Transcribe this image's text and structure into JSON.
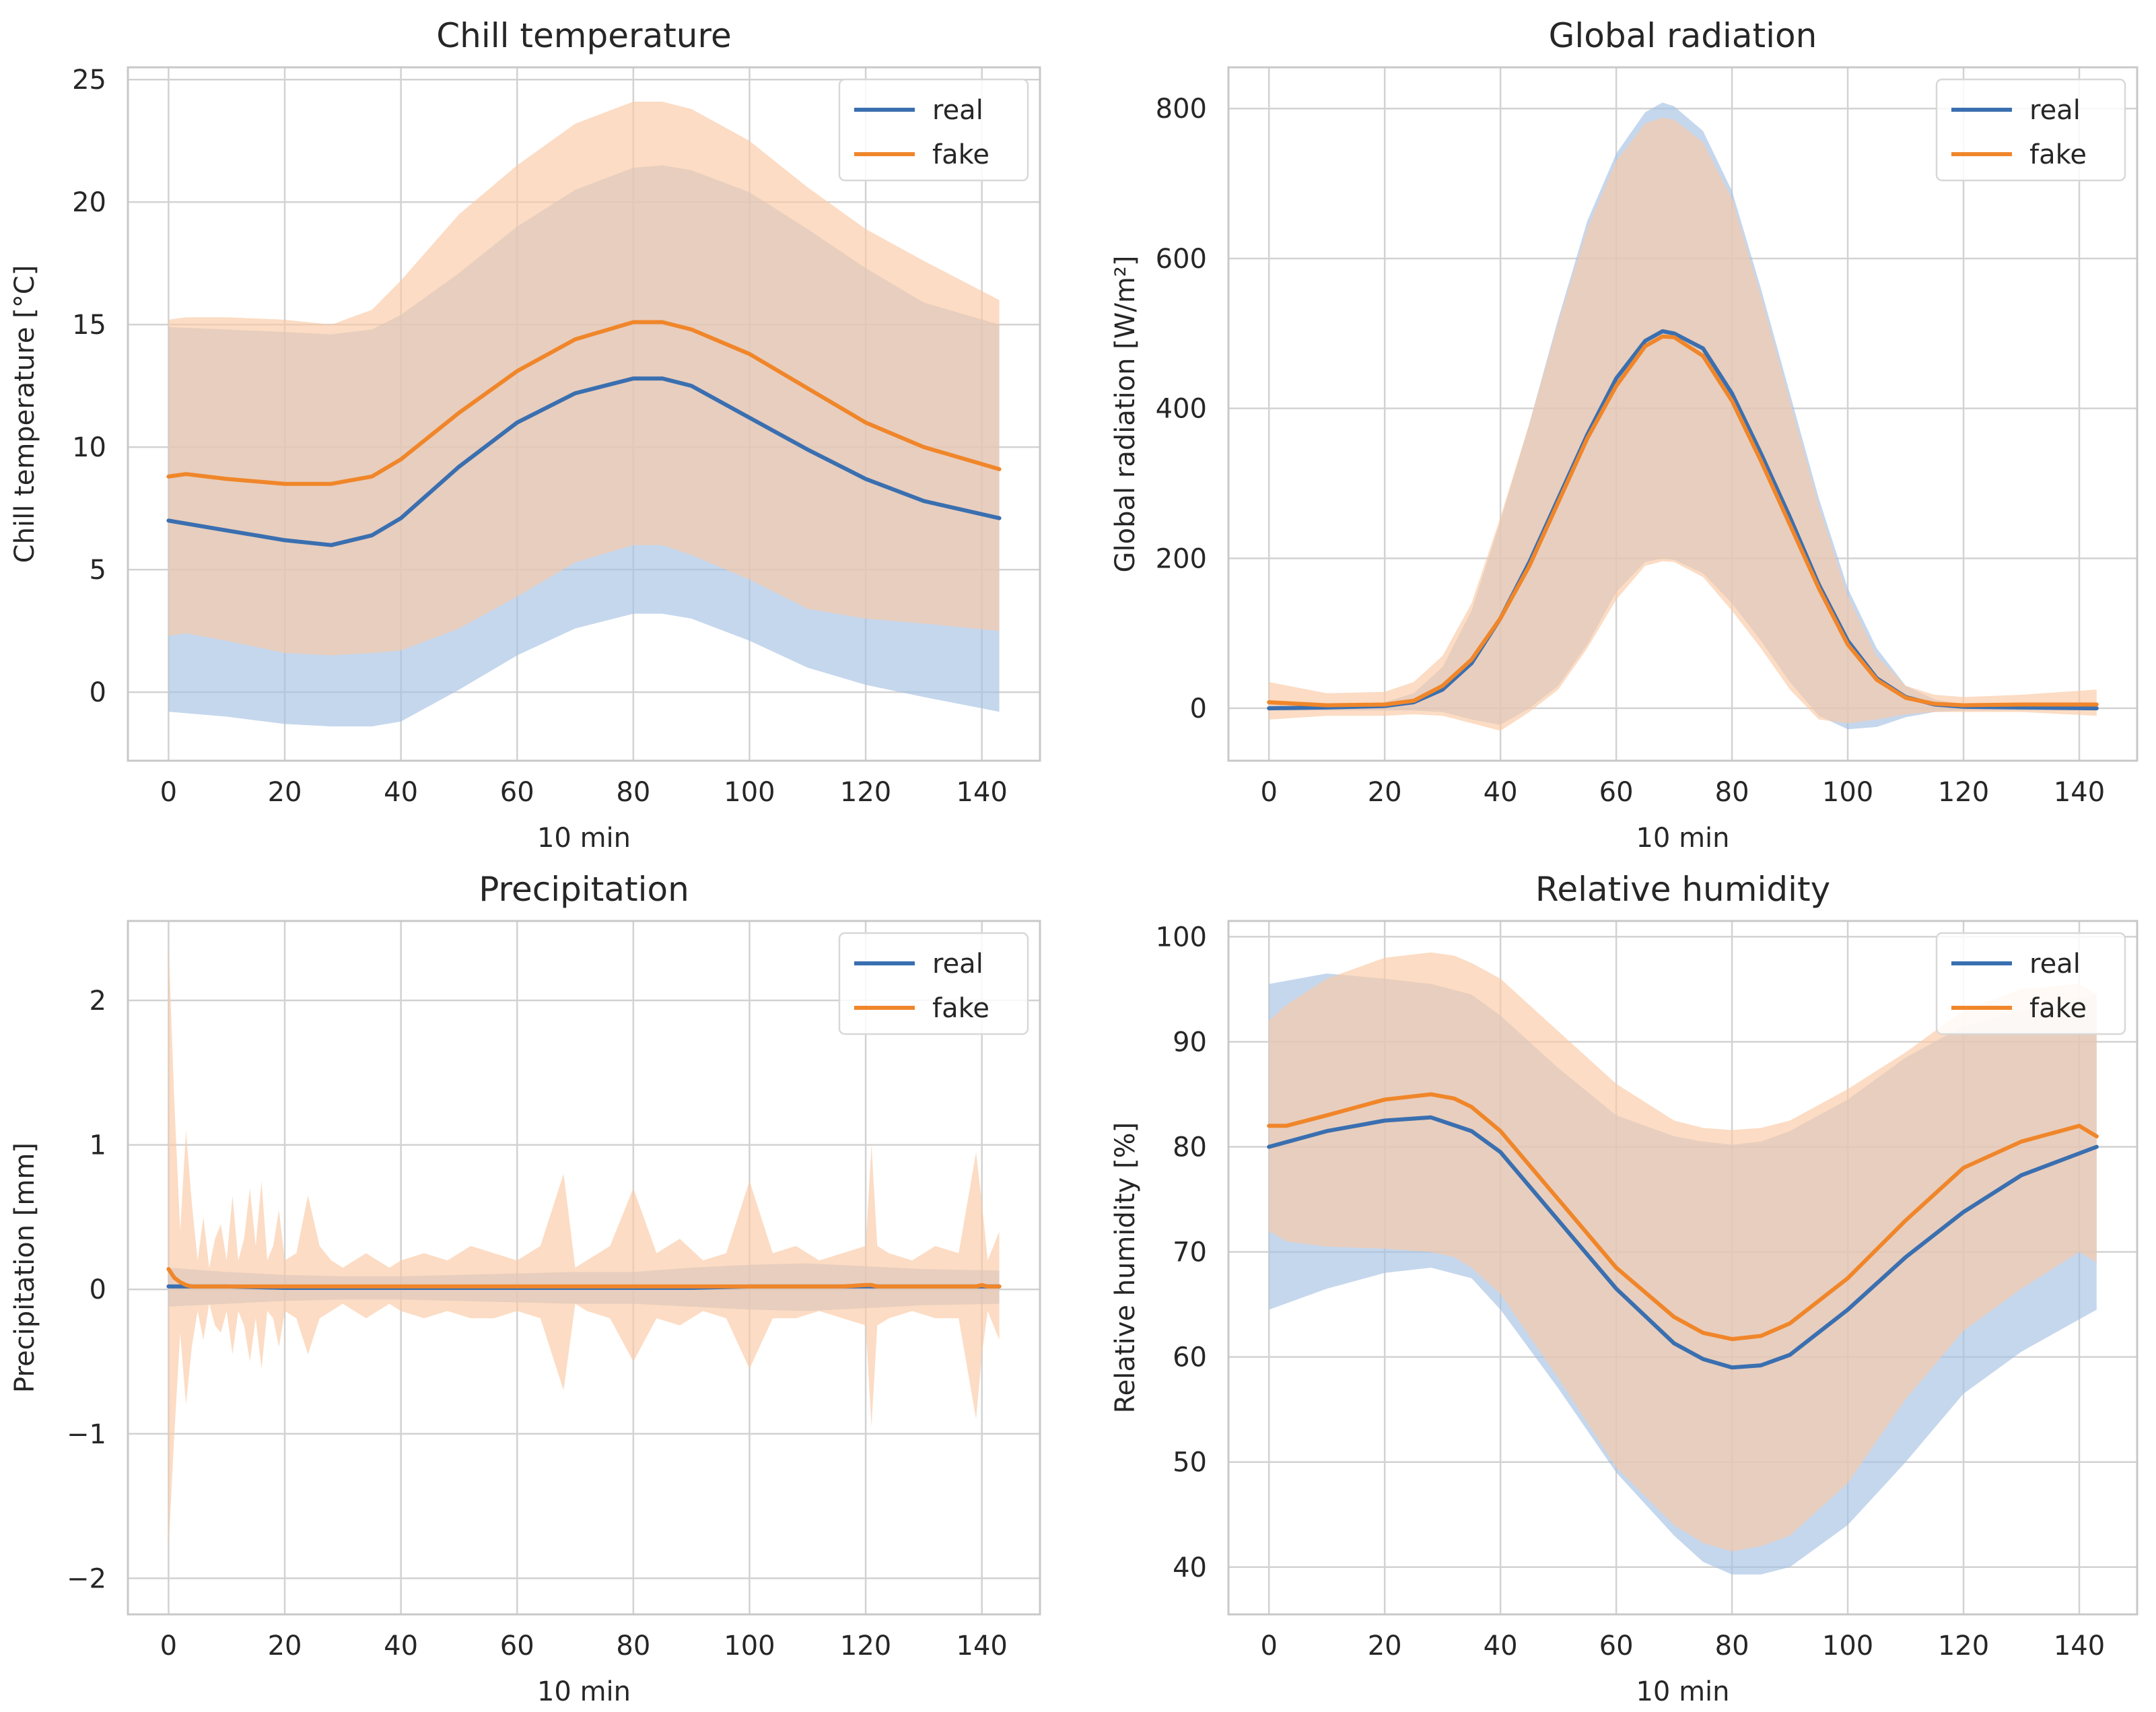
{
  "colors": {
    "real": "#3a6fb0",
    "fake": "#f0862a",
    "real_band": "#a6c2e3",
    "fake_band": "#fbc9a4",
    "grid": "#d2d2d2",
    "axis": "#c8c8c8",
    "text": "#262626"
  },
  "chart_data": [
    {
      "type": "line",
      "title": "Chill temperature",
      "xlabel": "10 min",
      "ylabel": "Chill temperature [°C]",
      "xlim": [
        -7,
        150
      ],
      "ylim": [
        -2.8,
        25.5
      ],
      "xticks": [
        0,
        20,
        40,
        60,
        80,
        100,
        120,
        140
      ],
      "yticks": [
        0,
        5,
        10,
        15,
        20,
        25
      ],
      "legend": {
        "position": "top-right",
        "entries": [
          "real",
          "fake"
        ]
      },
      "series": [
        {
          "name": "real",
          "x": [
            0,
            10,
            20,
            28,
            35,
            40,
            50,
            60,
            70,
            80,
            85,
            90,
            100,
            110,
            120,
            130,
            143
          ],
          "mean": [
            7.0,
            6.6,
            6.2,
            6.0,
            6.4,
            7.1,
            9.2,
            11.0,
            12.2,
            12.8,
            12.8,
            12.5,
            11.2,
            9.9,
            8.7,
            7.8,
            7.1
          ],
          "upper": [
            14.9,
            14.8,
            14.7,
            14.6,
            14.8,
            15.4,
            17.1,
            19.0,
            20.5,
            21.4,
            21.5,
            21.3,
            20.4,
            18.9,
            17.3,
            15.9,
            15.0
          ],
          "lower": [
            -0.8,
            -1.0,
            -1.3,
            -1.4,
            -1.4,
            -1.2,
            0.1,
            1.5,
            2.6,
            3.2,
            3.2,
            3.0,
            2.1,
            1.0,
            0.3,
            -0.2,
            -0.8
          ]
        },
        {
          "name": "fake",
          "x": [
            0,
            3,
            10,
            20,
            28,
            35,
            40,
            50,
            60,
            70,
            80,
            85,
            90,
            100,
            110,
            120,
            130,
            143
          ],
          "mean": [
            8.8,
            8.9,
            8.7,
            8.5,
            8.5,
            8.8,
            9.5,
            11.4,
            13.1,
            14.4,
            15.1,
            15.1,
            14.8,
            13.8,
            12.4,
            11.0,
            10.0,
            9.1
          ],
          "upper": [
            15.2,
            15.3,
            15.3,
            15.2,
            15.0,
            15.6,
            16.8,
            19.5,
            21.5,
            23.2,
            24.1,
            24.1,
            23.8,
            22.5,
            20.6,
            18.9,
            17.6,
            16.0
          ],
          "lower": [
            2.3,
            2.4,
            2.1,
            1.6,
            1.5,
            1.6,
            1.7,
            2.6,
            3.9,
            5.3,
            6.0,
            6.0,
            5.6,
            4.6,
            3.4,
            3.0,
            2.8,
            2.5
          ]
        }
      ]
    },
    {
      "type": "line",
      "title": "Global radiation",
      "xlabel": "10 min",
      "ylabel": "Global radiation [W/m²]",
      "xlim": [
        -7,
        150
      ],
      "ylim": [
        -70,
        855
      ],
      "xticks": [
        0,
        20,
        40,
        60,
        80,
        100,
        120,
        140
      ],
      "yticks": [
        0,
        200,
        400,
        600,
        800
      ],
      "legend": {
        "position": "top-right",
        "entries": [
          "real",
          "fake"
        ]
      },
      "series": [
        {
          "name": "real",
          "x": [
            0,
            10,
            20,
            25,
            30,
            35,
            40,
            45,
            50,
            55,
            60,
            65,
            68,
            70,
            75,
            80,
            85,
            90,
            95,
            100,
            105,
            110,
            115,
            120,
            130,
            143
          ],
          "mean": [
            0,
            1,
            3,
            8,
            25,
            60,
            120,
            195,
            280,
            365,
            440,
            490,
            503,
            500,
            480,
            420,
            340,
            255,
            165,
            90,
            40,
            15,
            5,
            2,
            1,
            0
          ],
          "upper": [
            5,
            5,
            8,
            20,
            55,
            130,
            250,
            380,
            520,
            650,
            740,
            795,
            808,
            803,
            770,
            690,
            560,
            420,
            280,
            160,
            80,
            30,
            12,
            5,
            5,
            5
          ],
          "lower": [
            -3,
            -3,
            -3,
            -3,
            -5,
            -15,
            -22,
            0,
            30,
            85,
            155,
            195,
            200,
            198,
            180,
            140,
            90,
            35,
            -10,
            -28,
            -25,
            -12,
            -5,
            -3,
            -3,
            -3
          ]
        },
        {
          "name": "fake",
          "x": [
            0,
            10,
            20,
            25,
            30,
            35,
            40,
            45,
            50,
            55,
            60,
            65,
            68,
            70,
            75,
            80,
            85,
            90,
            95,
            100,
            105,
            110,
            115,
            120,
            130,
            143
          ],
          "mean": [
            8,
            4,
            5,
            10,
            30,
            65,
            120,
            190,
            275,
            360,
            430,
            483,
            496,
            495,
            470,
            410,
            330,
            245,
            160,
            85,
            38,
            14,
            6,
            4,
            5,
            5
          ],
          "upper": [
            35,
            20,
            22,
            35,
            70,
            140,
            255,
            380,
            515,
            640,
            730,
            780,
            788,
            785,
            755,
            680,
            550,
            410,
            270,
            150,
            70,
            30,
            18,
            15,
            18,
            25
          ],
          "lower": [
            -15,
            -10,
            -10,
            -8,
            -10,
            -20,
            -30,
            -5,
            25,
            80,
            145,
            190,
            196,
            195,
            175,
            130,
            80,
            25,
            -15,
            -20,
            -15,
            -8,
            -5,
            -5,
            -5,
            -10
          ]
        }
      ]
    },
    {
      "type": "line",
      "title": "Precipitation",
      "xlabel": "10 min",
      "ylabel": "Precipitation [mm]",
      "xlim": [
        -7,
        150
      ],
      "ylim": [
        -2.25,
        2.55
      ],
      "xticks": [
        0,
        20,
        40,
        60,
        80,
        100,
        120,
        140
      ],
      "yticks": [
        -2,
        -1,
        0,
        1,
        2
      ],
      "legend": {
        "position": "top-right",
        "entries": [
          "real",
          "fake"
        ]
      },
      "series": [
        {
          "name": "real",
          "x": [
            0,
            10,
            20,
            30,
            40,
            50,
            60,
            70,
            80,
            90,
            100,
            110,
            120,
            130,
            143
          ],
          "mean": [
            0.02,
            0.02,
            0.01,
            0.01,
            0.01,
            0.01,
            0.01,
            0.01,
            0.01,
            0.01,
            0.02,
            0.02,
            0.02,
            0.02,
            0.02
          ],
          "upper": [
            0.15,
            0.12,
            0.1,
            0.09,
            0.09,
            0.1,
            0.11,
            0.12,
            0.12,
            0.15,
            0.17,
            0.18,
            0.16,
            0.14,
            0.13
          ],
          "lower": [
            -0.12,
            -0.1,
            -0.08,
            -0.07,
            -0.07,
            -0.08,
            -0.09,
            -0.1,
            -0.1,
            -0.12,
            -0.14,
            -0.15,
            -0.13,
            -0.11,
            -0.1
          ]
        },
        {
          "name": "fake",
          "x": [
            0,
            1,
            2,
            3,
            4,
            5,
            6,
            7,
            8,
            9,
            10,
            11,
            12,
            13,
            14,
            15,
            16,
            17,
            18,
            19,
            20,
            22,
            24,
            26,
            28,
            30,
            32,
            34,
            36,
            38,
            40,
            44,
            48,
            52,
            56,
            60,
            64,
            68,
            70,
            72,
            76,
            80,
            84,
            88,
            92,
            96,
            100,
            104,
            108,
            112,
            116,
            120,
            121,
            122,
            124,
            128,
            132,
            136,
            139,
            140,
            141,
            143
          ],
          "mean": [
            0.14,
            0.08,
            0.05,
            0.03,
            0.02,
            0.02,
            0.02,
            0.02,
            0.02,
            0.02,
            0.02,
            0.02,
            0.02,
            0.02,
            0.02,
            0.02,
            0.02,
            0.02,
            0.02,
            0.02,
            0.02,
            0.02,
            0.02,
            0.02,
            0.02,
            0.02,
            0.02,
            0.02,
            0.02,
            0.02,
            0.02,
            0.02,
            0.02,
            0.02,
            0.02,
            0.02,
            0.02,
            0.02,
            0.02,
            0.02,
            0.02,
            0.02,
            0.02,
            0.02,
            0.02,
            0.02,
            0.02,
            0.02,
            0.02,
            0.02,
            0.02,
            0.03,
            0.03,
            0.02,
            0.02,
            0.02,
            0.02,
            0.02,
            0.02,
            0.03,
            0.02,
            0.02
          ],
          "upper": [
            2.4,
            1.3,
            0.4,
            1.1,
            0.6,
            0.2,
            0.5,
            0.15,
            0.35,
            0.45,
            0.2,
            0.65,
            0.2,
            0.35,
            0.7,
            0.3,
            0.75,
            0.2,
            0.3,
            0.55,
            0.2,
            0.25,
            0.65,
            0.3,
            0.2,
            0.15,
            0.2,
            0.25,
            0.2,
            0.15,
            0.2,
            0.25,
            0.2,
            0.3,
            0.25,
            0.2,
            0.3,
            0.8,
            0.15,
            0.2,
            0.3,
            0.7,
            0.25,
            0.35,
            0.2,
            0.25,
            0.75,
            0.25,
            0.3,
            0.2,
            0.25,
            0.3,
            1.0,
            0.3,
            0.25,
            0.2,
            0.3,
            0.25,
            0.95,
            0.6,
            0.2,
            0.4
          ],
          "lower": [
            -1.8,
            -1.0,
            -0.3,
            -0.8,
            -0.4,
            -0.15,
            -0.35,
            -0.1,
            -0.25,
            -0.3,
            -0.15,
            -0.45,
            -0.15,
            -0.25,
            -0.5,
            -0.2,
            -0.55,
            -0.15,
            -0.2,
            -0.4,
            -0.15,
            -0.2,
            -0.45,
            -0.2,
            -0.15,
            -0.1,
            -0.15,
            -0.2,
            -0.15,
            -0.1,
            -0.15,
            -0.2,
            -0.15,
            -0.2,
            -0.2,
            -0.15,
            -0.2,
            -0.7,
            -0.1,
            -0.15,
            -0.2,
            -0.5,
            -0.2,
            -0.25,
            -0.15,
            -0.2,
            -0.55,
            -0.2,
            -0.2,
            -0.15,
            -0.2,
            -0.25,
            -0.95,
            -0.25,
            -0.2,
            -0.15,
            -0.2,
            -0.2,
            -0.9,
            -0.45,
            -0.15,
            -0.35
          ]
        }
      ]
    },
    {
      "type": "line",
      "title": "Relative humidity",
      "xlabel": "10 min",
      "ylabel": "Relative humidity [%]",
      "xlim": [
        -7,
        150
      ],
      "ylim": [
        35.5,
        101.5
      ],
      "xticks": [
        0,
        20,
        40,
        60,
        80,
        100,
        120,
        140
      ],
      "yticks": [
        40,
        50,
        60,
        70,
        80,
        90,
        100
      ],
      "legend": {
        "position": "top-right",
        "entries": [
          "real",
          "fake"
        ]
      },
      "series": [
        {
          "name": "real",
          "x": [
            0,
            10,
            20,
            28,
            35,
            40,
            50,
            60,
            70,
            75,
            80,
            85,
            90,
            100,
            110,
            120,
            130,
            143
          ],
          "mean": [
            80.0,
            81.5,
            82.5,
            82.8,
            81.5,
            79.5,
            73.0,
            66.5,
            61.3,
            59.8,
            59.0,
            59.2,
            60.2,
            64.5,
            69.5,
            73.8,
            77.3,
            80.0
          ],
          "upper": [
            95.5,
            96.5,
            96.0,
            95.5,
            94.5,
            92.5,
            87.5,
            83.0,
            81.0,
            80.5,
            80.2,
            80.5,
            81.5,
            84.5,
            88.5,
            91.5,
            93.0,
            94.5
          ],
          "lower": [
            64.5,
            66.5,
            68.0,
            68.5,
            67.5,
            64.5,
            57.0,
            49.0,
            43.0,
            40.5,
            39.3,
            39.3,
            40.0,
            44.0,
            50.0,
            56.5,
            60.5,
            64.5
          ]
        },
        {
          "name": "fake",
          "x": [
            0,
            3,
            10,
            20,
            28,
            32,
            35,
            40,
            50,
            60,
            70,
            75,
            80,
            85,
            90,
            100,
            110,
            120,
            130,
            140,
            143
          ],
          "mean": [
            82.0,
            82.0,
            83.0,
            84.5,
            85.0,
            84.6,
            83.8,
            81.5,
            75.0,
            68.5,
            63.8,
            62.3,
            61.7,
            62.0,
            63.2,
            67.5,
            73.0,
            78.0,
            80.5,
            82.0,
            81.0
          ],
          "upper": [
            92.0,
            93.5,
            96.0,
            98.0,
            98.5,
            98.2,
            97.5,
            96.0,
            91.0,
            86.0,
            82.5,
            81.8,
            81.6,
            81.8,
            82.5,
            85.5,
            89.0,
            93.0,
            95.0,
            95.5,
            94.5
          ],
          "lower": [
            72.0,
            71.0,
            70.5,
            70.3,
            70.0,
            69.5,
            68.5,
            66.0,
            58.0,
            49.5,
            44.0,
            42.3,
            41.5,
            42.0,
            43.0,
            48.0,
            56.0,
            62.5,
            66.5,
            70.0,
            69.0
          ]
        }
      ]
    }
  ]
}
